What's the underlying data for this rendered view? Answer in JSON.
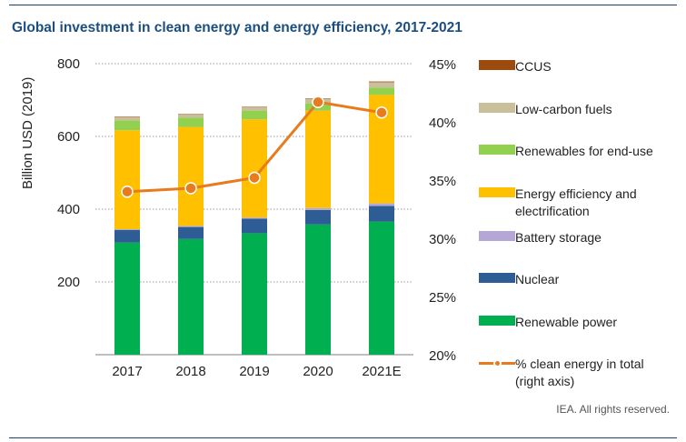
{
  "title": "Global investment in clean energy and energy efficiency, 2017-2021",
  "credit": "IEA. All rights reserved.",
  "chart_data": {
    "type": "bar",
    "stacked": true,
    "title": "Global investment in clean energy and energy efficiency, 2017-2021",
    "ylabel": "Billion USD (2019)",
    "ylabel_right": "% clean energy in total (right axis)",
    "categories": [
      "2017",
      "2018",
      "2019",
      "2020",
      "2021E"
    ],
    "ylim": [
      0,
      800
    ],
    "yticks": [
      200,
      400,
      600,
      800
    ],
    "ylim_right": [
      20,
      45
    ],
    "yticks_right_labels": [
      "20%",
      "25%",
      "30%",
      "35%",
      "40%",
      "45%"
    ],
    "yticks_right": [
      20,
      25,
      30,
      35,
      40,
      45
    ],
    "series": [
      {
        "name": "Renewable power",
        "color": "#00b050",
        "values": [
          308,
          318,
          334,
          358,
          366
        ]
      },
      {
        "name": "Nuclear",
        "color": "#2e5c94",
        "values": [
          35,
          33,
          40,
          40,
          43
        ]
      },
      {
        "name": "Battery storage",
        "color": "#b4a7d6",
        "values": [
          2,
          3,
          3,
          5,
          7
        ]
      },
      {
        "name": "Energy efficiency  and electrification",
        "color": "#ffc000",
        "values": [
          272,
          272,
          270,
          268,
          298
        ]
      },
      {
        "name": "Renewables for end-use",
        "color": "#92d050",
        "values": [
          27,
          26,
          24,
          20,
          20
        ]
      },
      {
        "name": "Low-carbon fuels",
        "color": "#c9bf9a",
        "values": [
          10,
          9,
          10,
          13,
          15
        ]
      },
      {
        "name": "CCUS",
        "color": "#9c4a0e",
        "values": [
          1,
          1,
          1,
          1,
          2
        ]
      }
    ],
    "line_series": {
      "name": "% clean energy in total (right axis)",
      "color": "#e77b1e",
      "axis": "right",
      "values": [
        34.0,
        34.3,
        35.2,
        41.7,
        40.8
      ]
    },
    "legend_order": [
      "CCUS",
      "Low-carbon fuels",
      "Renewables for end-use",
      "Energy efficiency  and electrification",
      "Battery storage",
      "Nuclear",
      "Renewable power",
      "% clean energy in total (right axis)"
    ],
    "legend_position": "right"
  }
}
